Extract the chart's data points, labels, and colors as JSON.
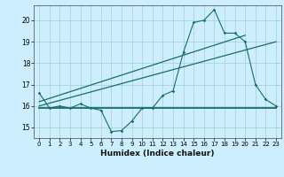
{
  "title": "",
  "xlabel": "Humidex (Indice chaleur)",
  "bg_color": "#cceeff",
  "grid_color": "#aad4d4",
  "line_color": "#1a6b6b",
  "x_ticks": [
    0,
    1,
    2,
    3,
    4,
    5,
    6,
    7,
    8,
    9,
    10,
    11,
    12,
    13,
    14,
    15,
    16,
    17,
    18,
    19,
    20,
    21,
    22,
    23
  ],
  "y_ticks": [
    15,
    16,
    17,
    18,
    19,
    20
  ],
  "ylim": [
    14.5,
    20.7
  ],
  "xlim": [
    -0.5,
    23.5
  ],
  "curve1": [
    16.6,
    15.9,
    16.0,
    15.9,
    16.1,
    15.9,
    15.8,
    14.8,
    14.85,
    15.3,
    15.9,
    15.9,
    16.5,
    16.7,
    18.5,
    19.9,
    20.0,
    20.5,
    19.4,
    19.4,
    19.0,
    17.0,
    16.3,
    16.0
  ],
  "curve2_x": [
    0,
    23
  ],
  "curve2_y": [
    15.92,
    15.92
  ],
  "curve3_x": [
    0,
    23
  ],
  "curve3_y": [
    16.0,
    19.0
  ],
  "curve4_x": [
    0,
    20
  ],
  "curve4_y": [
    16.2,
    19.3
  ]
}
